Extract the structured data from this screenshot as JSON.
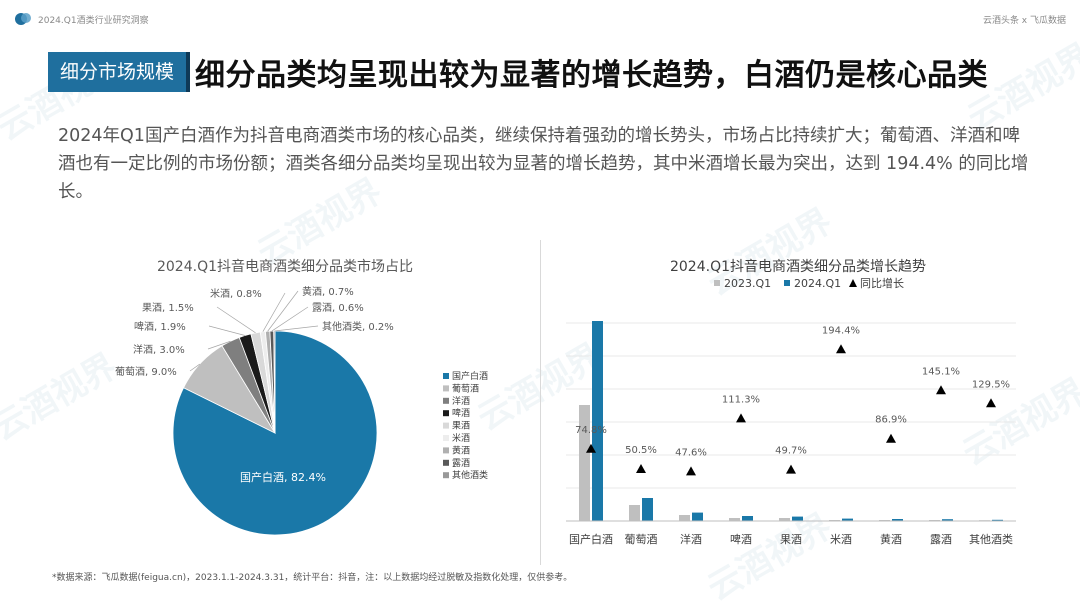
{
  "header": {
    "left_title": "2024.Q1酒类行业研究洞察",
    "right_title": "云酒头条 x 飞瓜数据"
  },
  "section_tag": "细分市场规模",
  "headline": "细分品类均呈现出较为显著的增长趋势，白酒仍是核心品类",
  "body_text": "2024年Q1国产白酒作为抖音电商酒类市场的核心品类，继续保持着强劲的增长势头，市场占比持续扩大；葡萄酒、洋酒和啤酒也有一定比例的市场份额；酒类各细分品类均呈现出较为显著的增长趋势，其中米酒增长最为突出，达到 194.4% 的同比增长。",
  "footer": "*数据来源：飞瓜数据(feigua.cn)，2023.1.1-2024.3.31，统计平台：抖音，注：以上数据均经过脱敏及指数化处理，仅供参考。",
  "watermark": "云酒视界",
  "colors": {
    "accent": "#1f6f9e",
    "pie": [
      "#1a78a8",
      "#bfbfbf",
      "#7f7f7f",
      "#1a1a1a",
      "#d9d9d9",
      "#ededed",
      "#b0b0b0",
      "#595959",
      "#999999"
    ],
    "bar_2023": "#bfbfbf",
    "bar_2024": "#1a78a8",
    "marker": "#000000"
  },
  "chart_data": [
    {
      "type": "pie",
      "title": "2024.Q1抖音电商酒类细分品类市场占比",
      "categories": [
        "国产白酒",
        "葡萄酒",
        "洋酒",
        "啤酒",
        "果酒",
        "米酒",
        "黄酒",
        "露酒",
        "其他酒类"
      ],
      "values": [
        82.4,
        9.0,
        3.0,
        1.9,
        1.5,
        0.8,
        0.7,
        0.6,
        0.2
      ],
      "data_labels": [
        "国产白酒, 82.4%",
        "葡萄酒, 9.0%",
        "洋酒, 3.0%",
        "啤酒, 1.9%",
        "果酒, 1.5%",
        "米酒, 0.8%",
        "黄酒, 0.7%",
        "露酒, 0.6%",
        "其他酒类, 0.2%"
      ],
      "legend_position": "right"
    },
    {
      "type": "bar",
      "title": "2024.Q1抖音电商酒类细分品类增长趋势",
      "categories": [
        "国产白酒",
        "葡萄酒",
        "洋酒",
        "啤酒",
        "果酒",
        "米酒",
        "黄酒",
        "露酒",
        "其他酒类"
      ],
      "series": [
        {
          "name": "2023.Q1",
          "values": [
            58,
            8,
            3,
            1.5,
            1.5,
            0.5,
            0.5,
            0.5,
            0.4
          ]
        },
        {
          "name": "2024.Q1",
          "values": [
            100,
            11.5,
            4.2,
            2.5,
            2.2,
            1.2,
            1.0,
            0.9,
            0.6
          ]
        }
      ],
      "growth": {
        "name": "同比增长",
        "values": [
          74.8,
          50.5,
          47.6,
          111.3,
          49.7,
          194.4,
          86.9,
          145.1,
          129.5
        ]
      },
      "growth_labels": [
        "74.8%",
        "50.5%",
        "47.6%",
        "111.3%",
        "49.7%",
        "194.4%",
        "86.9%",
        "145.1%",
        "129.5%"
      ],
      "ylim": [
        0,
        100
      ],
      "growth_lim": [
        0,
        250
      ],
      "grid": true,
      "legend_position": "top"
    }
  ]
}
